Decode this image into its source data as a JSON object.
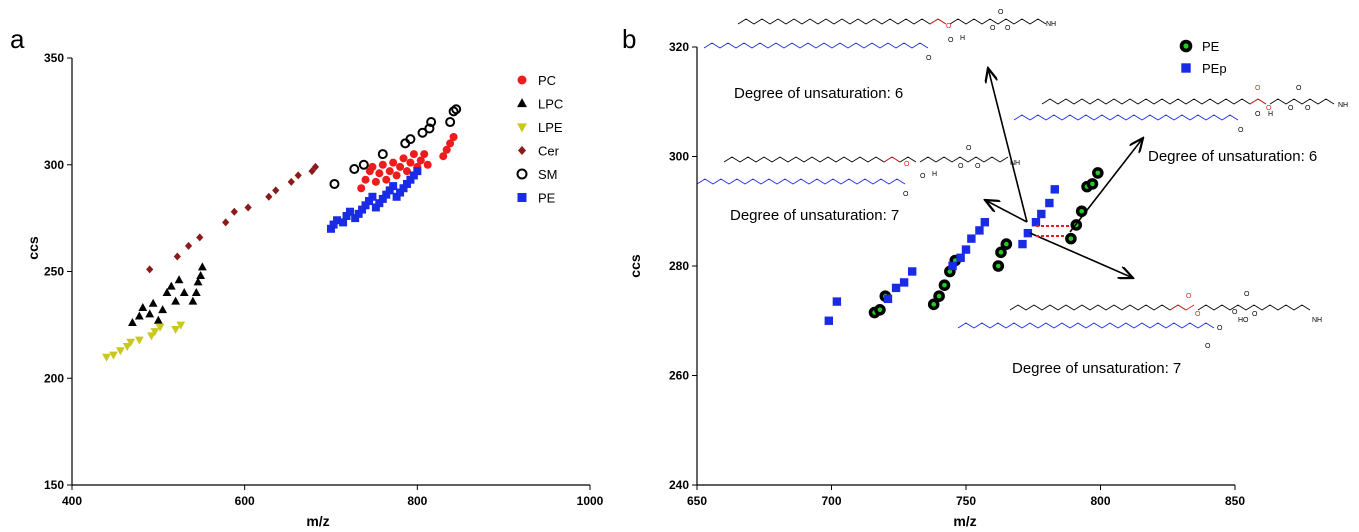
{
  "chart_data": [
    {
      "type": "scatter",
      "panel_label": "a",
      "xlabel": "m/z",
      "ylabel": "ccs",
      "xlim": [
        400,
        1000
      ],
      "ylim": [
        150,
        350
      ],
      "xticks": [
        "400",
        "600",
        "800",
        "1000"
      ],
      "yticks": [
        "150",
        "200",
        "250",
        "300",
        "350"
      ],
      "legend_position": "top-right",
      "grid": false,
      "series": [
        {
          "name": "PC",
          "marker": "circle",
          "color": "#ee1c1c",
          "points": [
            [
              735,
              289
            ],
            [
              740,
              293
            ],
            [
              745,
              297
            ],
            [
              748,
              299
            ],
            [
              752,
              292
            ],
            [
              756,
              296
            ],
            [
              760,
              300
            ],
            [
              764,
              293
            ],
            [
              768,
              297
            ],
            [
              772,
              301
            ],
            [
              776,
              295
            ],
            [
              780,
              299
            ],
            [
              784,
              303
            ],
            [
              788,
              297
            ],
            [
              792,
              301
            ],
            [
              796,
              305
            ],
            [
              800,
              299
            ],
            [
              804,
              302
            ],
            [
              808,
              305
            ],
            [
              812,
              300
            ],
            [
              830,
              304
            ],
            [
              834,
              307
            ],
            [
              838,
              310
            ],
            [
              842,
              313
            ]
          ]
        },
        {
          "name": "LPC",
          "marker": "triangle-up",
          "color": "#000000",
          "points": [
            [
              470,
              226
            ],
            [
              478,
              229
            ],
            [
              482,
              233
            ],
            [
              490,
              230
            ],
            [
              494,
              235
            ],
            [
              500,
              227
            ],
            [
              505,
              232
            ],
            [
              510,
              240
            ],
            [
              515,
              243
            ],
            [
              520,
              236
            ],
            [
              524,
              246
            ],
            [
              530,
              240
            ],
            [
              540,
              236
            ],
            [
              544,
              240
            ],
            [
              546,
              245
            ],
            [
              549,
              248
            ],
            [
              551,
              252
            ]
          ]
        },
        {
          "name": "LPE",
          "marker": "triangle-down",
          "color": "#c8c81e",
          "points": [
            [
              440,
              210
            ],
            [
              448,
              211
            ],
            [
              456,
              213
            ],
            [
              464,
              215
            ],
            [
              468,
              217
            ],
            [
              478,
              218
            ],
            [
              492,
              220
            ],
            [
              496,
              222
            ],
            [
              502,
              224
            ],
            [
              520,
              223
            ],
            [
              526,
              225
            ]
          ]
        },
        {
          "name": "Cer",
          "marker": "diamond",
          "color": "#8b1a1a",
          "points": [
            [
              490,
              251
            ],
            [
              522,
              257
            ],
            [
              535,
              262
            ],
            [
              548,
              266
            ],
            [
              578,
              273
            ],
            [
              588,
              278
            ],
            [
              604,
              280
            ],
            [
              628,
              285
            ],
            [
              636,
              288
            ],
            [
              654,
              292
            ],
            [
              662,
              295
            ],
            [
              678,
              297
            ],
            [
              682,
              299
            ]
          ]
        },
        {
          "name": "SM",
          "marker": "open-circle",
          "color": "#000000",
          "points": [
            [
              704,
              291
            ],
            [
              727,
              298
            ],
            [
              738,
              300
            ],
            [
              760,
              305
            ],
            [
              786,
              310
            ],
            [
              792,
              312
            ],
            [
              806,
              315
            ],
            [
              814,
              317
            ],
            [
              816,
              320
            ],
            [
              838,
              320
            ],
            [
              842,
              325
            ],
            [
              845,
              326
            ]
          ]
        },
        {
          "name": "PE",
          "marker": "square",
          "color": "#1a2be6",
          "points": [
            [
              700,
              270
            ],
            [
              703,
              272
            ],
            [
              707,
              274
            ],
            [
              714,
              273
            ],
            [
              718,
              276
            ],
            [
              722,
              278
            ],
            [
              728,
              275
            ],
            [
              732,
              277
            ],
            [
              736,
              279
            ],
            [
              740,
              281
            ],
            [
              744,
              283
            ],
            [
              748,
              285
            ],
            [
              752,
              280
            ],
            [
              756,
              282
            ],
            [
              760,
              284
            ],
            [
              764,
              286
            ],
            [
              768,
              288
            ],
            [
              772,
              290
            ],
            [
              776,
              285
            ],
            [
              780,
              287
            ],
            [
              784,
              289
            ],
            [
              788,
              291
            ],
            [
              792,
              293
            ],
            [
              796,
              295
            ],
            [
              800,
              297
            ]
          ]
        }
      ]
    },
    {
      "type": "scatter",
      "panel_label": "b",
      "xlabel": "m/z",
      "ylabel": "ccs",
      "xlim": [
        650,
        850
      ],
      "ylim": [
        240,
        320
      ],
      "xticks": [
        "650",
        "700",
        "750",
        "800",
        "850"
      ],
      "yticks": [
        "240",
        "260",
        "280",
        "300",
        "320"
      ],
      "legend_position": "top-right",
      "grid": false,
      "series": [
        {
          "name": "PE",
          "marker": "black-ring-green-dot",
          "color": "#22cc22",
          "points": [
            [
              716,
              271.5
            ],
            [
              718,
              272
            ],
            [
              720,
              274.5
            ],
            [
              738,
              273
            ],
            [
              740,
              274.5
            ],
            [
              742,
              276.5
            ],
            [
              744,
              279
            ],
            [
              746,
              281
            ],
            [
              762,
              280
            ],
            [
              763,
              282.5
            ],
            [
              765,
              284
            ],
            [
              789,
              285
            ],
            [
              791,
              287.5
            ],
            [
              793,
              290
            ],
            [
              795,
              294.5
            ],
            [
              799,
              297
            ],
            [
              797,
              295
            ]
          ]
        },
        {
          "name": "PEp",
          "marker": "square",
          "color": "#1a2be6",
          "points": [
            [
              699,
              270
            ],
            [
              702,
              273.5
            ],
            [
              721,
              274
            ],
            [
              724,
              276
            ],
            [
              727,
              277
            ],
            [
              730,
              279
            ],
            [
              745,
              280
            ],
            [
              748,
              281.5
            ],
            [
              750,
              283
            ],
            [
              752,
              285
            ],
            [
              755,
              286.5
            ],
            [
              757,
              288
            ],
            [
              771,
              284
            ],
            [
              773,
              286
            ],
            [
              776,
              288
            ],
            [
              778,
              289.5
            ],
            [
              781,
              291.5
            ],
            [
              783,
              294
            ]
          ]
        }
      ],
      "annotations": [
        {
          "text": "Degree of unsaturation: 6"
        },
        {
          "text": "Degree of unsaturation: 7"
        },
        {
          "text": "Degree of unsaturation: 6"
        },
        {
          "text": "Degree of unsaturation: 7"
        }
      ],
      "structure_labels": [
        "O",
        "O",
        "H",
        "NH2",
        "HO"
      ]
    }
  ]
}
